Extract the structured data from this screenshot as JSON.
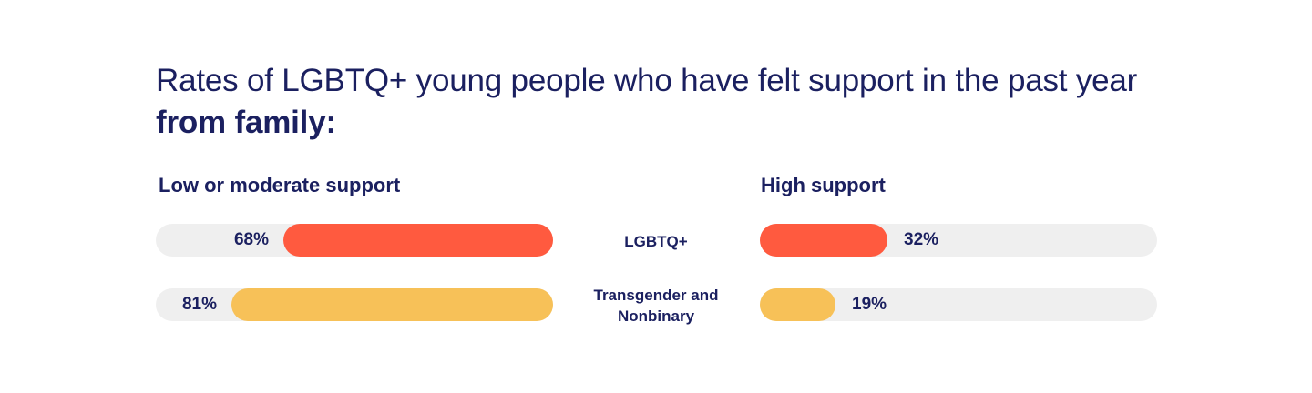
{
  "title": {
    "regular": "Rates of LGBTQ+ young people who have felt support in the past year ",
    "bold": "from family:"
  },
  "chart_data": {
    "type": "bar",
    "title": "Rates of LGBTQ+ young people who have felt support in the past year from family:",
    "categories": [
      "LGBTQ+",
      "Transgender and Nonbinary"
    ],
    "panels": [
      {
        "name": "Low or moderate support",
        "values": [
          68,
          81
        ],
        "labels": [
          "68%",
          "81%"
        ]
      },
      {
        "name": "High support",
        "values": [
          32,
          19
        ],
        "labels": [
          "32%",
          "19%"
        ]
      }
    ],
    "category_colors": [
      "#ff5a3f",
      "#f7c158"
    ],
    "track_color": "#efefef",
    "unit": "%",
    "ylim": [
      0,
      100
    ]
  }
}
